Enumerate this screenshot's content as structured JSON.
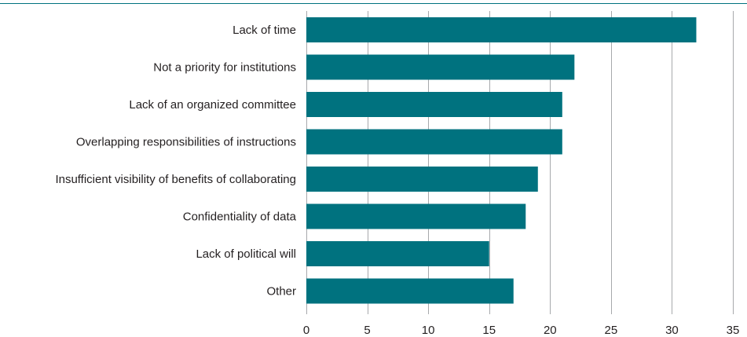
{
  "chart_data": {
    "type": "bar",
    "orientation": "horizontal",
    "title": "",
    "xlabel": "",
    "ylabel": "",
    "categories": [
      "Lack of time",
      "Not a priority for institutions",
      "Lack of an organized committee",
      "Overlapping responsibilities of instructions",
      "Insufficient visibility of benefits of collaborating",
      "Confidentiality of data",
      "Lack of political will",
      "Other"
    ],
    "values": [
      32,
      22,
      21,
      21,
      19,
      18,
      15,
      17
    ],
    "xlim": [
      0,
      35
    ],
    "xticks": [
      0,
      5,
      10,
      15,
      20,
      25,
      30,
      35
    ],
    "grid": "vertical",
    "legend": "none",
    "colors": {
      "bar": "#00727f",
      "gridline": "#a7a9ac",
      "top_rule": "#00727f",
      "text": "#231f20"
    }
  }
}
